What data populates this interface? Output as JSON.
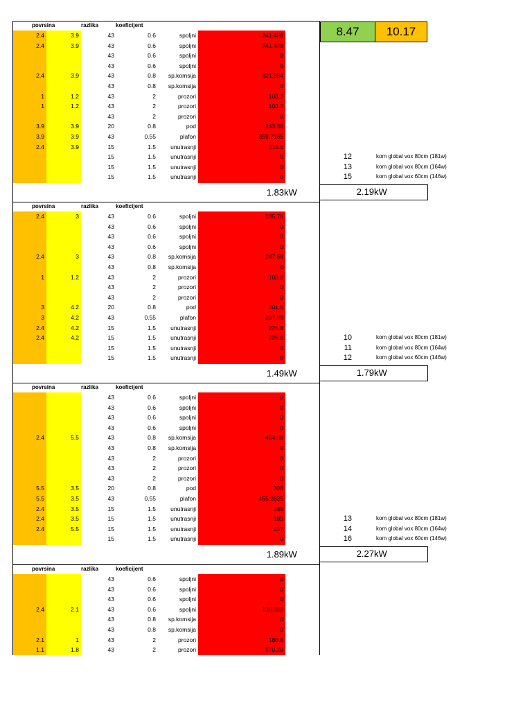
{
  "headers": {
    "povrsina": "povrsina",
    "razlika": "razlika",
    "koeficijent": "koeficijent"
  },
  "kpi": {
    "a": "8.47",
    "b": "10.17",
    "a_color": "#92d050",
    "b_color": "#ffc000"
  },
  "colors": {
    "orange": "#ffc000",
    "yellow": "#ffff00",
    "red": "#ff0000"
  },
  "unit": "kW",
  "sections": [
    {
      "rows": [
        {
          "p": "2.4",
          "r": "3.9",
          "t": "43",
          "k": "0.6",
          "n": "spoljni",
          "v": "241.488"
        },
        {
          "p": "2.4",
          "r": "3.9",
          "t": "43",
          "k": "0.6",
          "n": "spoljni",
          "v": "241.488"
        },
        {
          "p": "",
          "r": "",
          "t": "43",
          "k": "0.6",
          "n": "spoljni",
          "v": "0"
        },
        {
          "p": "",
          "r": "",
          "t": "43",
          "k": "0.6",
          "n": "spoljni",
          "v": "0"
        },
        {
          "p": "2.4",
          "r": "3.9",
          "t": "43",
          "k": "0.8",
          "n": "sp.komsija",
          "v": "321.984"
        },
        {
          "p": "",
          "r": "",
          "t": "43",
          "k": "0.8",
          "n": "sp.komsija",
          "v": "0"
        },
        {
          "p": "1",
          "r": "1.2",
          "t": "43",
          "k": "2",
          "n": "prozori",
          "v": "103.2"
        },
        {
          "p": "1",
          "r": "1.2",
          "t": "43",
          "k": "2",
          "n": "prozori",
          "v": "103.2"
        },
        {
          "p": "",
          "r": "",
          "t": "43",
          "k": "2",
          "n": "prozori",
          "v": "0"
        },
        {
          "p": "3.9",
          "r": "3.9",
          "t": "20",
          "k": "0.8",
          "n": "pod",
          "v": "243.36"
        },
        {
          "p": "3.9",
          "r": "3.9",
          "t": "43",
          "k": "0.55",
          "n": "plafon",
          "v": "359.7165"
        },
        {
          "p": "2.4",
          "r": "3.9",
          "t": "15",
          "k": "1.5",
          "n": "unutrasnji",
          "v": "210.6"
        },
        {
          "p": "",
          "r": "",
          "t": "15",
          "k": "1.5",
          "n": "unutrasnji",
          "v": "0"
        },
        {
          "p": "",
          "r": "",
          "t": "15",
          "k": "1.5",
          "n": "unutrasnji",
          "v": "0"
        },
        {
          "p": "",
          "r": "",
          "t": "15",
          "k": "1.5",
          "n": "unutrasnji",
          "v": "0"
        }
      ],
      "total1": "1.83",
      "total2": "2.19",
      "counts": [
        {
          "n": "12",
          "d": "kom global vox 80cm (181w)"
        },
        {
          "n": "13",
          "d": "kom global vox 80cm (164w)"
        },
        {
          "n": "15",
          "d": "kom global vox 60cm (146w)"
        }
      ]
    },
    {
      "rows": [
        {
          "p": "2.4",
          "r": "3",
          "t": "43",
          "k": "0.6",
          "n": "spoljni",
          "v": "185.76"
        },
        {
          "p": "",
          "r": "",
          "t": "43",
          "k": "0.6",
          "n": "spoljni",
          "v": "0"
        },
        {
          "p": "",
          "r": "",
          "t": "43",
          "k": "0.6",
          "n": "spoljni",
          "v": "0"
        },
        {
          "p": "",
          "r": "",
          "t": "43",
          "k": "0.6",
          "n": "spoljni",
          "v": "0"
        },
        {
          "p": "2.4",
          "r": "3",
          "t": "43",
          "k": "0.8",
          "n": "sp.komsija",
          "v": "247.68"
        },
        {
          "p": "",
          "r": "",
          "t": "43",
          "k": "0.8",
          "n": "sp.komsija",
          "v": "0"
        },
        {
          "p": "1",
          "r": "1.2",
          "t": "43",
          "k": "2",
          "n": "prozori",
          "v": "103.2"
        },
        {
          "p": "",
          "r": "",
          "t": "43",
          "k": "2",
          "n": "prozori",
          "v": "0"
        },
        {
          "p": "",
          "r": "",
          "t": "43",
          "k": "2",
          "n": "prozori",
          "v": "0"
        },
        {
          "p": "3",
          "r": "4.2",
          "t": "20",
          "k": "0.8",
          "n": "pod",
          "v": "201.6"
        },
        {
          "p": "3",
          "r": "4.2",
          "t": "43",
          "k": "0.55",
          "n": "plafon",
          "v": "297.99"
        },
        {
          "p": "2.4",
          "r": "4.2",
          "t": "15",
          "k": "1.5",
          "n": "unutrasnji",
          "v": "226.8"
        },
        {
          "p": "2.4",
          "r": "4.2",
          "t": "15",
          "k": "1.5",
          "n": "unutrasnji",
          "v": "226.8"
        },
        {
          "p": "",
          "r": "",
          "t": "15",
          "k": "1.5",
          "n": "unutrasnji",
          "v": "0"
        },
        {
          "p": "",
          "r": "",
          "t": "15",
          "k": "1.5",
          "n": "unutrasnji",
          "v": "0"
        }
      ],
      "total1": "1.49",
      "total2": "1.79",
      "counts": [
        {
          "n": "10",
          "d": "kom global vox 80cm (181w)"
        },
        {
          "n": "11",
          "d": "kom global vox 80cm (164w)"
        },
        {
          "n": "12",
          "d": "kom global vox 60cm (146w)"
        }
      ]
    },
    {
      "rows": [
        {
          "p": "",
          "r": "",
          "t": "43",
          "k": "0.6",
          "n": "spoljni",
          "v": "0"
        },
        {
          "p": "",
          "r": "",
          "t": "43",
          "k": "0.6",
          "n": "spoljni",
          "v": "0"
        },
        {
          "p": "",
          "r": "",
          "t": "43",
          "k": "0.6",
          "n": "spoljni",
          "v": "0"
        },
        {
          "p": "",
          "r": "",
          "t": "43",
          "k": "0.6",
          "n": "spoljni",
          "v": "0"
        },
        {
          "p": "2.4",
          "r": "5.5",
          "t": "43",
          "k": "0.8",
          "n": "sp.komsija",
          "v": "454.08"
        },
        {
          "p": "",
          "r": "",
          "t": "43",
          "k": "0.8",
          "n": "sp.komsija",
          "v": "0"
        },
        {
          "p": "",
          "r": "",
          "t": "43",
          "k": "2",
          "n": "prozori",
          "v": "0"
        },
        {
          "p": "",
          "r": "",
          "t": "43",
          "k": "2",
          "n": "prozori",
          "v": "0"
        },
        {
          "p": "",
          "r": "",
          "t": "43",
          "k": "2",
          "n": "prozori",
          "v": "0"
        },
        {
          "p": "5.5",
          "r": "3.5",
          "t": "20",
          "k": "0.8",
          "n": "pod",
          "v": "308"
        },
        {
          "p": "5.5",
          "r": "3.5",
          "t": "43",
          "k": "0.55",
          "n": "plafon",
          "v": "455.2625"
        },
        {
          "p": "2.4",
          "r": "3.5",
          "t": "15",
          "k": "1.5",
          "n": "unutrasnji",
          "v": "189"
        },
        {
          "p": "2.4",
          "r": "3.5",
          "t": "15",
          "k": "1.5",
          "n": "unutrasnji",
          "v": "189"
        },
        {
          "p": "2.4",
          "r": "5.5",
          "t": "15",
          "k": "1.5",
          "n": "unutrasnji",
          "v": "297"
        },
        {
          "p": "",
          "r": "",
          "t": "15",
          "k": "1.5",
          "n": "unutrasnji",
          "v": "0"
        }
      ],
      "total1": "1.89",
      "total2": "2.27",
      "counts": [
        {
          "n": "13",
          "d": "kom global vox 80cm (181w)"
        },
        {
          "n": "14",
          "d": "kom global vox 80cm (164w)"
        },
        {
          "n": "16",
          "d": "kom global vox 60cm (146w)"
        }
      ]
    },
    {
      "rows": [
        {
          "p": "",
          "r": "",
          "t": "43",
          "k": "0.6",
          "n": "spoljni",
          "v": "0"
        },
        {
          "p": "",
          "r": "",
          "t": "43",
          "k": "0.6",
          "n": "spoljni",
          "v": "0"
        },
        {
          "p": "",
          "r": "",
          "t": "43",
          "k": "0.6",
          "n": "spoljni",
          "v": "0"
        },
        {
          "p": "2.4",
          "r": "2.1",
          "t": "43",
          "k": "0.6",
          "n": "spoljni",
          "v": "130.032"
        },
        {
          "p": "",
          "r": "",
          "t": "43",
          "k": "0.8",
          "n": "sp.komsija",
          "v": "0"
        },
        {
          "p": "",
          "r": "",
          "t": "43",
          "k": "0.8",
          "n": "sp.komsija",
          "v": "0"
        },
        {
          "p": "2.1",
          "r": "1",
          "t": "43",
          "k": "2",
          "n": "prozori",
          "v": "180.6"
        },
        {
          "p": "1.1",
          "r": "1.8",
          "t": "43",
          "k": "2",
          "n": "prozori",
          "v": "170.28"
        }
      ]
    }
  ]
}
